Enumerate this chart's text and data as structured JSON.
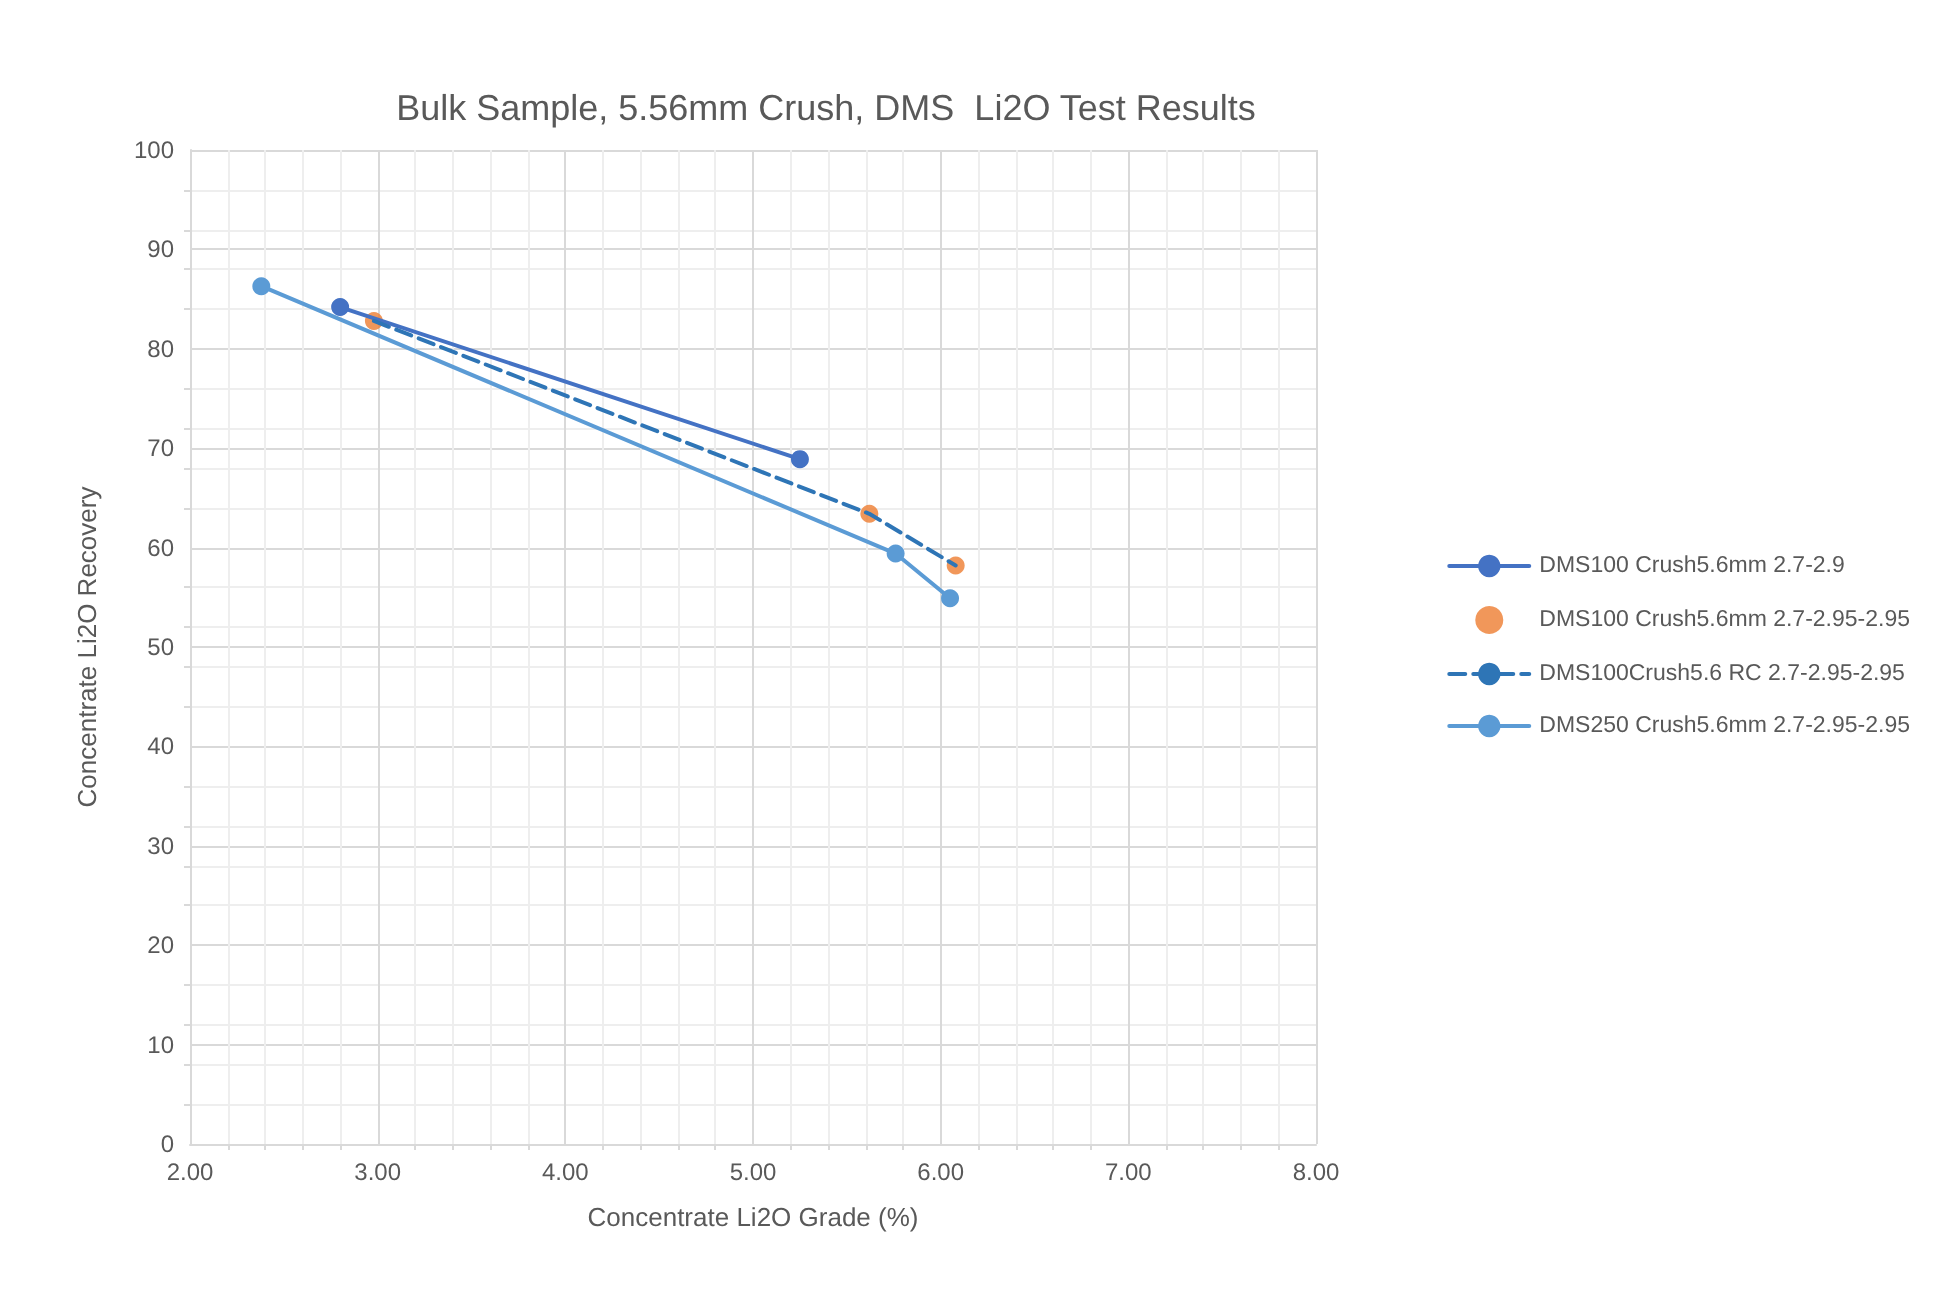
{
  "chart_data": {
    "type": "line",
    "title": "Bulk Sample, 5.56mm Crush, DMS  Li2O Test Results",
    "xlabel": "Concentrate Li2O Grade (%)",
    "ylabel": "Concentrate Li2O Recovery",
    "series": [
      {
        "name": "DMS100 Crush5.6mm 2.7-2.9",
        "color": "#4472c4",
        "marker": "circle",
        "line_style": "solid",
        "x": [
          2.8,
          5.25
        ],
        "values": [
          84.2,
          68.9
        ]
      },
      {
        "name": "DMS100 Crush5.6mm 2.7-2.95-2.95",
        "type": "scatter",
        "color": "#ed7d31",
        "marker": "circle",
        "x": [
          2.98,
          5.62,
          6.08
        ],
        "values": [
          82.8,
          63.4,
          58.2
        ]
      },
      {
        "name": "DMS100Crush5.6 RC 2.7-2.95-2.95",
        "color": "#2e75b6",
        "marker": "none",
        "line_style": "dashed",
        "x": [
          2.98,
          5.62,
          6.08
        ],
        "values": [
          82.8,
          63.4,
          58.2
        ]
      },
      {
        "name": "DMS250 Crush5.6mm 2.7-2.95-2.95",
        "color": "#5b9bd5",
        "marker": "circle",
        "line_style": "solid",
        "x": [
          2.38,
          5.76,
          6.05
        ],
        "values": [
          86.3,
          59.4,
          54.9
        ]
      }
    ],
    "xlim": [
      2,
      8
    ],
    "xticks": [
      {
        "value": 2,
        "label": "2.00"
      },
      {
        "value": 3,
        "label": "3.00"
      },
      {
        "value": 4,
        "label": "4.00"
      },
      {
        "value": 5,
        "label": "5.00"
      },
      {
        "value": 6,
        "label": "6.00"
      },
      {
        "value": 7,
        "label": "7.00"
      },
      {
        "value": 8,
        "label": "8.00"
      }
    ],
    "ylim": [
      0,
      100
    ],
    "yticks": [
      0,
      10,
      20,
      30,
      40,
      50,
      60,
      70,
      80,
      90,
      100
    ],
    "grid": true,
    "legend": "right"
  }
}
